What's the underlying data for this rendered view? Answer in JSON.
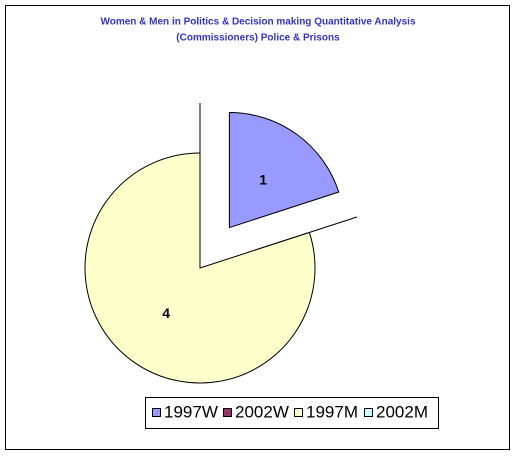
{
  "chart_data": {
    "type": "pie",
    "title": [
      "Women & Men in Politics & Decision making Quantitative Analysis",
      "(Commissioners) Police & Prisons"
    ],
    "categories": [
      "1997W",
      "2002W",
      "1997M",
      "2002M"
    ],
    "values": [
      1,
      0,
      4,
      0
    ],
    "colors": [
      "#9999ff",
      "#993366",
      "#ffffcc",
      "#ccffff"
    ],
    "legend": "bottom"
  }
}
